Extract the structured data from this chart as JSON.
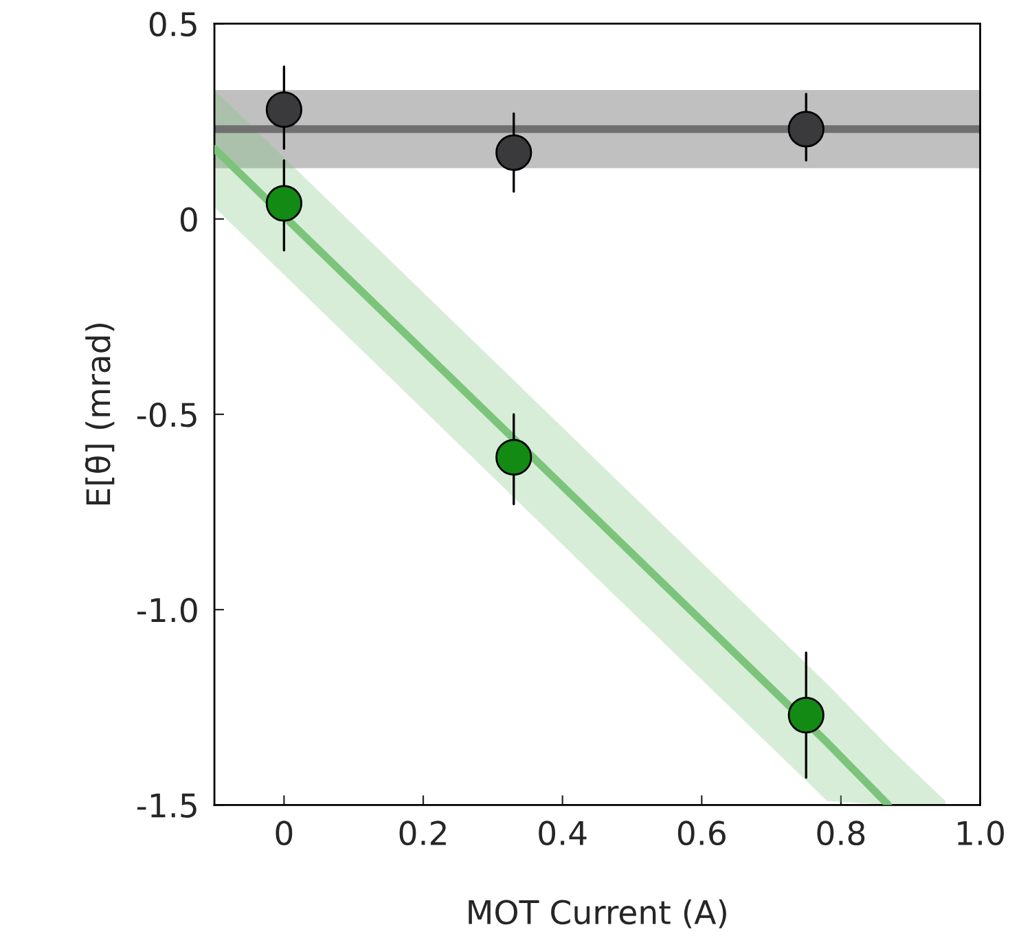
{
  "chart_data": {
    "type": "scatter",
    "xlabel": "MOT Current (A)",
    "ylabel": "E[θ̄] (mrad)",
    "xlim": [
      -0.1,
      1.0
    ],
    "xticks": [
      {
        "value": 0,
        "label": "0"
      },
      0.2,
      0.4,
      0.6,
      0.8,
      {
        "value": 1.0,
        "label": "1.0"
      }
    ],
    "ylim": [
      -1.5,
      0.5
    ],
    "yticks": [
      -1.5,
      {
        "value": -1.0,
        "label": "-1.0"
      },
      -0.5,
      {
        "value": 0,
        "label": "0"
      },
      0.5
    ],
    "grid": false,
    "bands": [
      {
        "axis": "y",
        "from": 0.13,
        "to": 0.33,
        "color": "#c0c0c0"
      }
    ],
    "ref_lines": [
      {
        "axis": "y",
        "value": 0.23,
        "color": "#707070",
        "line_style": "solid"
      }
    ],
    "series": [
      {
        "type": "line",
        "color": "#7cc47c",
        "x": [
          -0.1,
          0.78,
          0.868,
          0.95
        ],
        "values": [
          0.18,
          -1.34,
          -1.5,
          null
        ],
        "upper": [
          0.33,
          -1.19,
          -1.35,
          -1.49
        ],
        "lower": [
          0.03,
          -1.49,
          -1.5,
          -1.5
        ]
      },
      {
        "type": "scatter",
        "marker": "circle",
        "color": "#3a3a3c",
        "x": [
          0,
          0.33,
          0.75
        ],
        "values": [
          0.28,
          0.17,
          0.23
        ],
        "errors": [
          [
            0.18,
            0.39
          ],
          [
            0.07,
            0.27
          ],
          [
            0.15,
            0.32
          ]
        ]
      },
      {
        "type": "scatter",
        "marker": "circle",
        "color": "#138a13",
        "x": [
          0,
          0.33,
          0.75
        ],
        "values": [
          0.04,
          -0.61,
          -1.27
        ],
        "errors": [
          [
            -0.08,
            0.15
          ],
          [
            -0.73,
            -0.5
          ],
          [
            -1.43,
            -1.11
          ]
        ]
      }
    ]
  }
}
